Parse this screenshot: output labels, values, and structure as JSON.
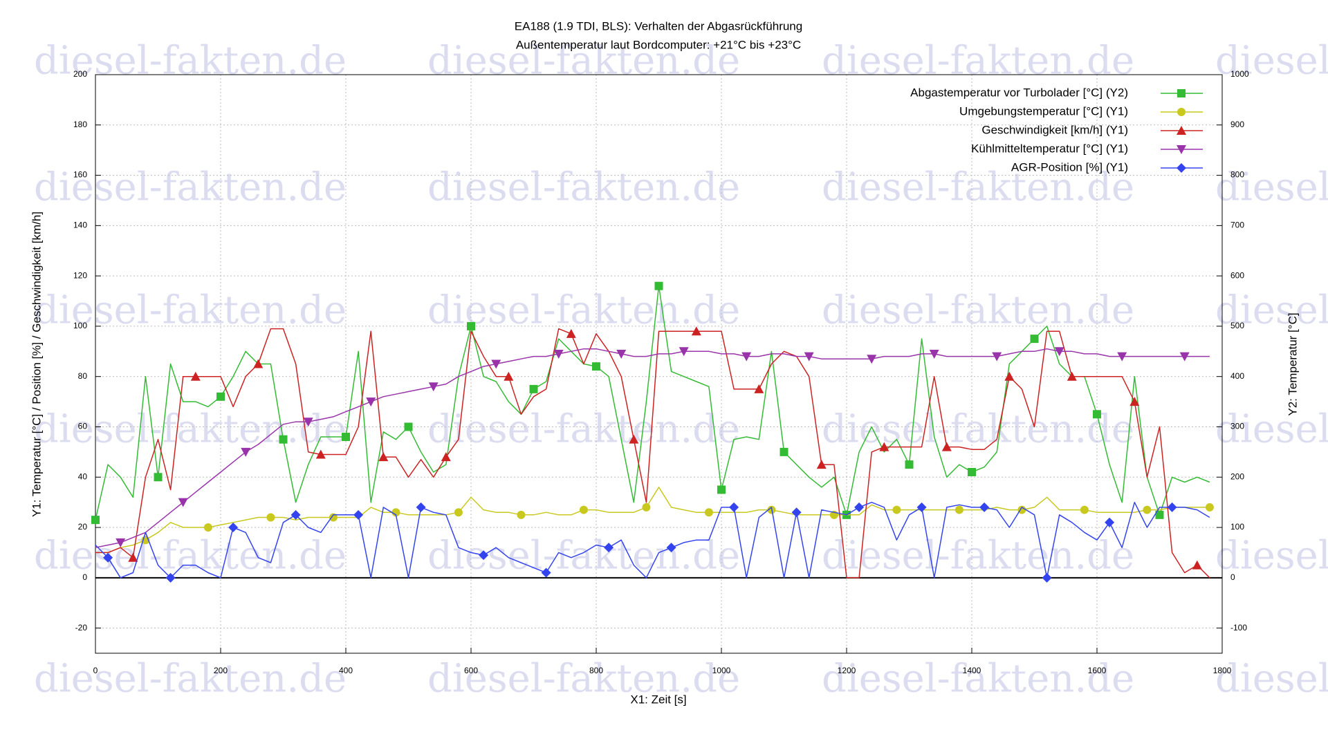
{
  "chart_data": {
    "type": "line",
    "title": "EA188 (1.9 TDI, BLS): Verhalten der Abgasrückführung",
    "subtitle": "Außentemperatur laut Bordcomputer: +21°C bis +23°C",
    "watermark": "diesel-fakten.de",
    "x_label": "X1: Zeit [s]",
    "y_label": "Y1: Temperatur [°C] / Position [%] / Geschwindigkeit [km/h]",
    "y2_label": "Y2: Temperatur [°C]",
    "xlim": [
      0,
      1800
    ],
    "xticks": [
      0,
      200,
      400,
      600,
      800,
      1000,
      1200,
      1400,
      1600,
      1800
    ],
    "ylim": [
      -30,
      200
    ],
    "yticks": [
      -20,
      0,
      20,
      40,
      60,
      80,
      100,
      120,
      140,
      160,
      180,
      200
    ],
    "y2lim": [
      -150,
      1000
    ],
    "y2ticks": [
      -100,
      0,
      100,
      200,
      300,
      400,
      500,
      600,
      700,
      800,
      900,
      1000
    ],
    "grid": true,
    "legend": "upper right",
    "x": [
      0,
      20,
      40,
      60,
      80,
      100,
      120,
      140,
      160,
      180,
      200,
      220,
      240,
      260,
      280,
      300,
      320,
      340,
      360,
      380,
      400,
      420,
      440,
      460,
      480,
      500,
      520,
      540,
      560,
      580,
      600,
      620,
      640,
      660,
      680,
      700,
      720,
      740,
      760,
      780,
      800,
      820,
      840,
      860,
      880,
      900,
      920,
      940,
      960,
      980,
      1000,
      1020,
      1040,
      1060,
      1080,
      1100,
      1120,
      1140,
      1160,
      1180,
      1200,
      1220,
      1240,
      1260,
      1280,
      1300,
      1320,
      1340,
      1360,
      1380,
      1400,
      1420,
      1440,
      1460,
      1480,
      1500,
      1520,
      1540,
      1560,
      1580,
      1600,
      1620,
      1640,
      1660,
      1680,
      1700,
      1720,
      1740,
      1760,
      1780
    ],
    "series": [
      {
        "name": "Abgastemperatur vor Turbolader [°C] (Y2)",
        "color": "#33bb33",
        "marker": "square",
        "axis": "y2",
        "values": [
          115,
          225,
          200,
          160,
          400,
          200,
          425,
          350,
          350,
          340,
          360,
          400,
          450,
          425,
          425,
          275,
          150,
          225,
          280,
          280,
          280,
          450,
          150,
          290,
          275,
          300,
          250,
          210,
          225,
          400,
          500,
          400,
          390,
          350,
          325,
          375,
          390,
          475,
          450,
          425,
          420,
          400,
          275,
          150,
          350,
          580,
          410,
          400,
          390,
          380,
          175,
          275,
          280,
          275,
          450,
          250,
          225,
          200,
          180,
          200,
          125,
          250,
          300,
          250,
          275,
          225,
          475,
          280,
          200,
          225,
          210,
          220,
          250,
          425,
          450,
          475,
          500,
          425,
          400,
          400,
          325,
          225,
          150,
          400,
          200,
          125,
          200,
          190,
          200,
          190
        ]
      },
      {
        "name": "Umgebungstemperatur [°C] (Y1)",
        "color": "#c8c81e",
        "marker": "circle",
        "values": [
          10,
          10,
          12,
          13,
          15,
          18,
          22,
          20,
          20,
          20,
          21,
          22,
          23,
          24,
          24,
          24,
          23,
          24,
          24,
          24,
          24,
          24,
          28,
          26,
          26,
          25,
          25,
          25,
          25,
          26,
          32,
          27,
          26,
          26,
          25,
          25,
          26,
          25,
          25,
          27,
          27,
          26,
          26,
          26,
          28,
          36,
          28,
          27,
          26,
          26,
          26,
          26,
          26,
          27,
          27,
          26,
          25,
          25,
          25,
          25,
          25,
          25,
          29,
          27,
          27,
          27,
          27,
          27,
          27,
          27,
          27,
          27,
          28,
          27,
          27,
          28,
          32,
          27,
          27,
          27,
          26,
          26,
          26,
          26,
          27,
          27,
          28,
          28,
          28,
          28
        ]
      },
      {
        "name": "Geschwindigkeit [km/h] (Y1)",
        "color": "#cc2222",
        "marker": "triangle-up",
        "values": [
          10,
          10,
          12,
          8,
          40,
          55,
          35,
          80,
          80,
          80,
          80,
          68,
          80,
          85,
          99,
          99,
          85,
          50,
          49,
          49,
          49,
          60,
          98,
          48,
          48,
          40,
          47,
          40,
          48,
          55,
          98,
          88,
          80,
          80,
          65,
          72,
          75,
          99,
          97,
          85,
          97,
          90,
          80,
          55,
          30,
          98,
          98,
          98,
          98,
          98,
          98,
          75,
          75,
          75,
          85,
          90,
          88,
          80,
          45,
          45,
          0,
          0,
          50,
          52,
          52,
          52,
          52,
          80,
          52,
          52,
          51,
          51,
          55,
          80,
          75,
          60,
          98,
          98,
          80,
          80,
          80,
          80,
          80,
          70,
          40,
          60,
          10,
          2,
          5,
          0
        ]
      },
      {
        "name": "Kühlmitteltemperatur [°C] (Y1)",
        "color": "#9933aa",
        "marker": "triangle-down",
        "values": [
          12,
          13,
          14,
          16,
          18,
          22,
          26,
          30,
          34,
          38,
          42,
          46,
          50,
          53,
          57,
          61,
          62,
          62,
          63,
          64,
          66,
          68,
          70,
          72,
          73,
          74,
          75,
          76,
          77,
          80,
          82,
          84,
          85,
          86,
          87,
          88,
          88,
          89,
          90,
          91,
          91,
          90,
          89,
          88,
          88,
          89,
          89,
          90,
          90,
          90,
          89,
          89,
          88,
          88,
          89,
          89,
          88,
          88,
          87,
          87,
          87,
          87,
          87,
          88,
          88,
          88,
          89,
          89,
          88,
          88,
          88,
          88,
          88,
          89,
          90,
          90,
          91,
          90,
          90,
          89,
          89,
          88,
          88,
          88,
          88,
          88,
          88,
          88,
          88,
          88
        ]
      },
      {
        "name": "AGR-Position [%] (Y1)",
        "color": "#3344ee",
        "marker": "diamond",
        "values": [
          13,
          8,
          0,
          2,
          18,
          5,
          0,
          5,
          5,
          2,
          0,
          20,
          18,
          8,
          6,
          22,
          25,
          20,
          18,
          25,
          25,
          25,
          0,
          28,
          25,
          0,
          28,
          26,
          25,
          12,
          10,
          9,
          12,
          8,
          6,
          4,
          2,
          10,
          8,
          10,
          13,
          12,
          15,
          5,
          0,
          10,
          12,
          14,
          15,
          15,
          28,
          28,
          0,
          24,
          28,
          0,
          26,
          0,
          27,
          26,
          25,
          28,
          30,
          28,
          15,
          25,
          28,
          0,
          28,
          29,
          28,
          28,
          27,
          20,
          28,
          25,
          0,
          25,
          22,
          18,
          15,
          22,
          12,
          30,
          20,
          28,
          28,
          28,
          27,
          24
        ]
      }
    ]
  }
}
